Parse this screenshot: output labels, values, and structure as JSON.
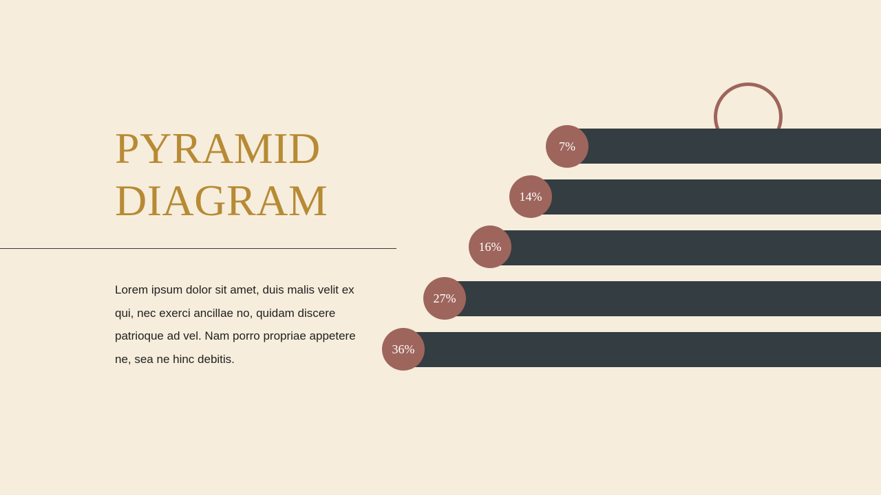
{
  "slide": {
    "title_line1": "PYRAMID",
    "title_line2": "DIAGRAM",
    "body": "Lorem ipsum dolor sit amet, duis malis velit ex qui, nec exerci ancillae no, quidam discere patrioque ad vel. Nam porro propriae appetere ne, sea ne hinc debitis."
  },
  "levels": [
    {
      "label": "7%",
      "value": 7
    },
    {
      "label": "14%",
      "value": 14
    },
    {
      "label": "16%",
      "value": 16
    },
    {
      "label": "27%",
      "value": 27
    },
    {
      "label": "36%",
      "value": 36
    }
  ],
  "colors": {
    "background": "#F6EDDC",
    "title": "#B78A34",
    "bar": "#343D41",
    "badge": "#9E655C",
    "text": "#1F1F1F"
  }
}
